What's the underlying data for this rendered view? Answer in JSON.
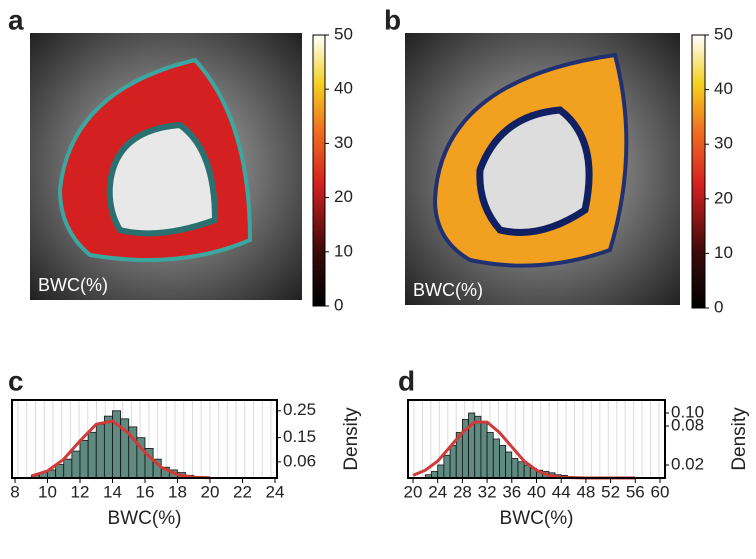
{
  "chart_data": [
    {
      "type": "map-image",
      "panel": "a",
      "label": "BWC(%)",
      "colorbar_lim": [
        0,
        50
      ],
      "colorbar_ticks": [
        0,
        10,
        20,
        30,
        40,
        50
      ]
    },
    {
      "type": "map-image",
      "panel": "b",
      "label": "BWC(%)",
      "colorbar_lim": [
        0,
        50
      ],
      "colorbar_ticks": [
        0,
        10,
        20,
        30,
        40,
        50
      ]
    },
    {
      "type": "histogram",
      "panel": "c",
      "xlabel": "BWC(%)",
      "ylabel": "Density",
      "color": "#5f8a80",
      "bins": [
        9,
        9.5,
        10,
        10.5,
        11,
        11.5,
        12,
        12.5,
        13,
        13.5,
        14,
        14.5,
        15,
        15.5,
        16,
        16.5,
        17,
        17.5,
        18,
        18.5,
        19
      ],
      "values": [
        0.01,
        0.02,
        0.03,
        0.05,
        0.07,
        0.1,
        0.14,
        0.17,
        0.2,
        0.23,
        0.25,
        0.22,
        0.19,
        0.15,
        0.11,
        0.07,
        0.04,
        0.03,
        0.02,
        0.01
      ],
      "curve": {
        "color": "#d03a3a",
        "x": [
          9,
          10,
          11,
          12,
          13,
          14,
          15,
          16,
          17,
          18,
          19,
          20
        ],
        "values": [
          0.007,
          0.026,
          0.07,
          0.138,
          0.2,
          0.212,
          0.166,
          0.095,
          0.04,
          0.012,
          0.003,
          0.001
        ]
      },
      "xlim": [
        8,
        24
      ],
      "xticks": [
        8,
        10,
        12,
        14,
        16,
        18,
        20,
        22,
        24
      ],
      "ylim": [
        0,
        0.29
      ],
      "yticks": [
        0.06,
        0.15,
        0.25
      ]
    },
    {
      "type": "histogram",
      "panel": "d",
      "xlabel": "BWC(%)",
      "ylabel": "Density",
      "color": "#5f8a80",
      "bins": [
        22,
        23,
        24,
        25,
        26,
        27,
        28,
        29,
        30,
        31,
        32,
        33,
        34,
        35,
        36,
        37,
        38,
        39,
        40,
        41,
        42,
        43,
        44,
        45,
        46
      ],
      "values": [
        0.005,
        0.01,
        0.02,
        0.035,
        0.05,
        0.07,
        0.09,
        0.1,
        0.095,
        0.085,
        0.07,
        0.06,
        0.05,
        0.04,
        0.03,
        0.025,
        0.02,
        0.015,
        0.012,
        0.01,
        0.008,
        0.005,
        0.004,
        0.002
      ],
      "curve": {
        "color": "#d03a3a",
        "x": [
          20,
          22,
          24,
          26,
          28,
          30,
          32,
          34,
          36,
          38,
          40,
          42,
          44,
          48,
          56
        ],
        "values": [
          0.004,
          0.012,
          0.026,
          0.048,
          0.07,
          0.086,
          0.086,
          0.07,
          0.048,
          0.026,
          0.012,
          0.004,
          0.001,
          0,
          0
        ]
      },
      "xlim": [
        20,
        60
      ],
      "xticks": [
        20,
        24,
        28,
        32,
        36,
        40,
        44,
        48,
        52,
        56,
        60
      ],
      "ylim": [
        0,
        0.12
      ],
      "yticks": [
        0.02,
        0.08,
        {
          "value": 0.1,
          "label": "0.10"
        }
      ]
    }
  ]
}
